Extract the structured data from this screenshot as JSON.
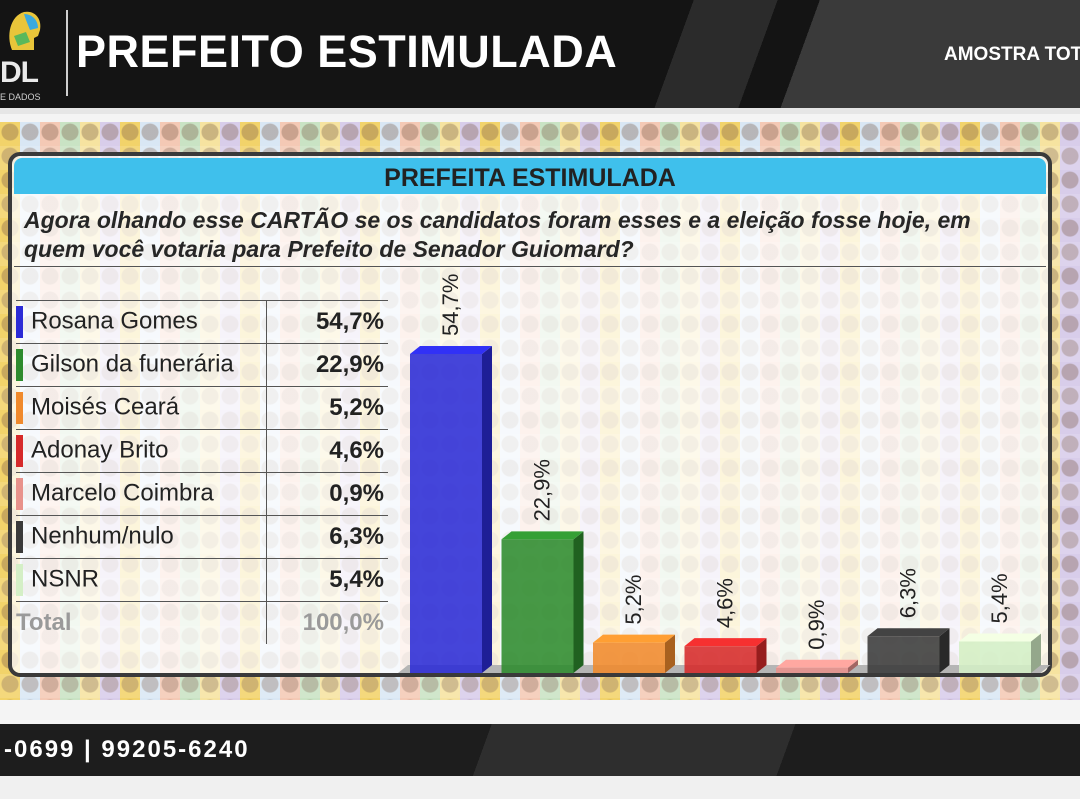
{
  "header": {
    "logo_text": "DL",
    "logo_subtext": "E DADOS",
    "title": "PREFEITO ESTIMULADA",
    "sample_label": "AMOSTRA TOT"
  },
  "panel": {
    "title": "PREFEITA ESTIMULADA",
    "question": "Agora olhando esse CARTÃO se os candidatos foram esses e a eleição fosse hoje, em quem você votaria para Prefeito de Senador Guiomard?"
  },
  "legend": {
    "rows": [
      {
        "name": "Rosana Gomes",
        "pct": "54,7%"
      },
      {
        "name": "Gilson da funerária",
        "pct": "22,9%"
      },
      {
        "name": "Moisés Ceará",
        "pct": "5,2%"
      },
      {
        "name": "Adonay Brito",
        "pct": "4,6%"
      },
      {
        "name": "Marcelo Coimbra",
        "pct": "0,9%"
      },
      {
        "name": "Nenhum/nulo",
        "pct": "6,3%"
      },
      {
        "name": "NSNR",
        "pct": "5,4%"
      }
    ],
    "total_label": "Total",
    "total_value": "100,0%"
  },
  "chart_data": {
    "type": "bar",
    "title": "PREFEITA ESTIMULADA",
    "categories": [
      "Rosana Gomes",
      "Gilson da funerária",
      "Moisés Ceará",
      "Adonay Brito",
      "Marcelo Coimbra",
      "Nenhum/nulo",
      "NSNR"
    ],
    "values": [
      54.7,
      22.9,
      5.2,
      4.6,
      0.9,
      6.3,
      5.4
    ],
    "labels": [
      "54,7%",
      "22,9%",
      "5,2%",
      "4,6%",
      "0,9%",
      "6,3%",
      "5,4%"
    ],
    "colors": [
      "#2b2bd6",
      "#2e8b2e",
      "#f08a2c",
      "#d62a2a",
      "#e8928c",
      "#3a3a3a",
      "#d4efc6"
    ],
    "ylim": [
      0,
      60
    ],
    "grid": false,
    "legend_position": "left"
  },
  "footer": {
    "phone": "-0699 | 99205-6240"
  },
  "colors": {
    "title_bar": "#3fc0ec",
    "header_bg": "#141414"
  }
}
